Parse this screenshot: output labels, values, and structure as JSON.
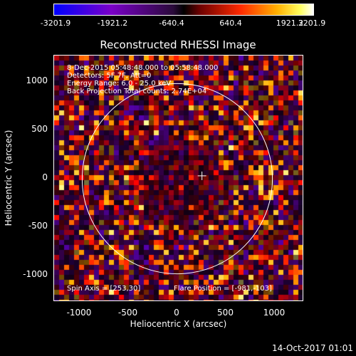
{
  "colorbar": {
    "ticks": [
      "-3201.9",
      "-1921.2",
      "-640.4",
      "640.4",
      "1921.2",
      "3201.9"
    ],
    "min": -3201.9,
    "max": 3201.9
  },
  "title": "Reconstructed RHESSI Image",
  "annotations": {
    "time": "8-Dec-2015 05:48:48.000 to 05:58:48.000",
    "detectors": "Detectors: 5F 7F, Att=0",
    "energy": "Energy Range: 6.0 - 25.0 keV",
    "method": "Back Projection    Total counts: 2.74E+04",
    "spin_axis": "Spin Axis = [253,30]",
    "flare_position": "Flare Position = [-981,-103]"
  },
  "axes": {
    "xlabel": "Heliocentric X (arcsec)",
    "ylabel": "Heliocentric Y (arcsec)",
    "xticks": [
      "-1000",
      "-500",
      "0",
      "500",
      "1000"
    ],
    "yticks": [
      "1000",
      "500",
      "0",
      "-500",
      "-1000"
    ],
    "xlim": [
      -1280,
      1280
    ],
    "ylim": [
      -1280,
      1280
    ]
  },
  "solar_limb_radius": 975,
  "spin_axis_marker": [
    253,
    30
  ],
  "timestamp": "14-Oct-2017 01:01",
  "colors": {
    "background": "#000000",
    "limb": "#ffffff",
    "text": "#ffffff"
  }
}
